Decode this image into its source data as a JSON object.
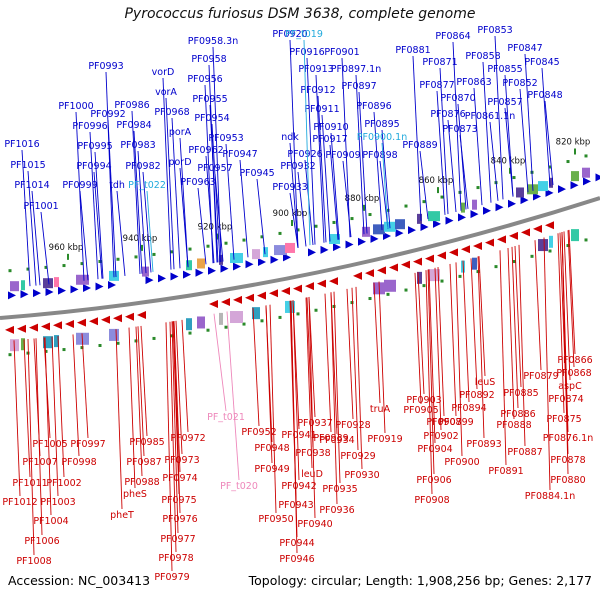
{
  "title": "Pyrococcus furiosus DSM 3638, complete genome",
  "footer": {
    "accession": "Accession: NC_003413",
    "topology": "Topology: circular; Length: 1,908,256 bp; Genes: 2,177"
  },
  "colors": {
    "forward": "#0000cc",
    "reverse": "#cc0000",
    "trna_fwd": "#22aadd",
    "trna_rev": "#ee88bb",
    "backbone": "#888888"
  },
  "kbp_labels": [
    {
      "text": "960 kbp"
    },
    {
      "text": "940 kbp"
    },
    {
      "text": "920 kbp"
    },
    {
      "text": "900 kbp"
    },
    {
      "text": "880 kbp"
    },
    {
      "text": "860 kbp"
    },
    {
      "text": "840 kbp"
    },
    {
      "text": "820 kbp"
    }
  ],
  "forward_genes": [
    {
      "label": "PF1016"
    },
    {
      "label": "PF1015"
    },
    {
      "label": "PF1014"
    },
    {
      "label": "PF1001"
    },
    {
      "label": "PF0999"
    },
    {
      "label": "PF0994"
    },
    {
      "label": "PF0995"
    },
    {
      "label": "PF0996"
    },
    {
      "label": "PF1000"
    },
    {
      "label": "PF0992"
    },
    {
      "label": "PF0993"
    },
    {
      "label": "tdh"
    },
    {
      "label": "PF0982"
    },
    {
      "label": "PF0983"
    },
    {
      "label": "PF0984"
    },
    {
      "label": "PF0986"
    },
    {
      "label": "PF0968"
    },
    {
      "label": "vorA"
    },
    {
      "label": "vorD"
    },
    {
      "label": "porA"
    },
    {
      "label": "porD"
    },
    {
      "label": "PF0963"
    },
    {
      "label": "PF0962"
    },
    {
      "label": "PF0958.3n"
    },
    {
      "label": "PF0958"
    },
    {
      "label": "PF0956"
    },
    {
      "label": "PF0955"
    },
    {
      "label": "PF0954"
    },
    {
      "label": "PF0953"
    },
    {
      "label": "PF0957"
    },
    {
      "label": "PF0947"
    },
    {
      "label": "PF0945"
    },
    {
      "label": "PF0933"
    },
    {
      "label": "ndk"
    },
    {
      "label": "PF0932"
    },
    {
      "label": "PF0926"
    },
    {
      "label": "PF0920"
    },
    {
      "label": "PF0916"
    },
    {
      "label": "PF0913"
    },
    {
      "label": "PF0912"
    },
    {
      "label": "PF0911"
    },
    {
      "label": "PF0910"
    },
    {
      "label": "PF0917"
    },
    {
      "label": "PF0909"
    },
    {
      "label": "PF0901"
    },
    {
      "label": "PF0897.1n"
    },
    {
      "label": "PF0897"
    },
    {
      "label": "PF0896"
    },
    {
      "label": "PF0895"
    },
    {
      "label": "PF0898"
    },
    {
      "label": "PF0889"
    },
    {
      "label": "PF0881"
    },
    {
      "label": "PF0864"
    },
    {
      "label": "PF0871"
    },
    {
      "label": "PF0877"
    },
    {
      "label": "PF0870"
    },
    {
      "label": "PF0876"
    },
    {
      "label": "PF0873"
    },
    {
      "label": "PF0853"
    },
    {
      "label": "PF0858"
    },
    {
      "label": "PF0863"
    },
    {
      "label": "PF0855"
    },
    {
      "label": "PF0847"
    },
    {
      "label": "PF0845"
    },
    {
      "label": "PF0852"
    },
    {
      "label": "PF0857"
    },
    {
      "label": "PF0848"
    },
    {
      "label": "PF0861.1n"
    }
  ],
  "forward_trna": [
    {
      "label": "PF_t022"
    },
    {
      "label": "PF_t019"
    },
    {
      "label": "PF0900.1n"
    }
  ],
  "reverse_genes": [
    {
      "label": "PF1005"
    },
    {
      "label": "PF0997"
    },
    {
      "label": "PF1007"
    },
    {
      "label": "PF0998"
    },
    {
      "label": "PF1011"
    },
    {
      "label": "PF1002"
    },
    {
      "label": "PF1012"
    },
    {
      "label": "PF1003"
    },
    {
      "label": "PF1004"
    },
    {
      "label": "PF1006"
    },
    {
      "label": "PF1008"
    },
    {
      "label": "PF0985"
    },
    {
      "label": "PF0972"
    },
    {
      "label": "PF0987"
    },
    {
      "label": "PF0973"
    },
    {
      "label": "PF0988"
    },
    {
      "label": "PF0974"
    },
    {
      "label": "pheS"
    },
    {
      "label": "PF0975"
    },
    {
      "label": "pheT"
    },
    {
      "label": "PF0976"
    },
    {
      "label": "PF0977"
    },
    {
      "label": "PF0978"
    },
    {
      "label": "PF0979"
    },
    {
      "label": "PF0952"
    },
    {
      "label": "PF0948"
    },
    {
      "label": "PF0941"
    },
    {
      "label": "PF0937"
    },
    {
      "label": "PF0928"
    },
    {
      "label": "PF0939"
    },
    {
      "label": "PF0934"
    },
    {
      "label": "PF0949"
    },
    {
      "label": "PF0938"
    },
    {
      "label": "PF0929"
    },
    {
      "label": "leuD"
    },
    {
      "label": "PF0930"
    },
    {
      "label": "PF0942"
    },
    {
      "label": "PF0935"
    },
    {
      "label": "PF0943"
    },
    {
      "label": "PF0936"
    },
    {
      "label": "PF0950"
    },
    {
      "label": "PF0940"
    },
    {
      "label": "PF0944"
    },
    {
      "label": "PF0946"
    },
    {
      "label": "truA"
    },
    {
      "label": "PF0919"
    },
    {
      "label": "PF0903"
    },
    {
      "label": "PF0905"
    },
    {
      "label": "PF0907"
    },
    {
      "label": "PF0902"
    },
    {
      "label": "PF0904"
    },
    {
      "label": "PF0906"
    },
    {
      "label": "PF0900"
    },
    {
      "label": "PF0908"
    },
    {
      "label": "leuS"
    },
    {
      "label": "PF0892"
    },
    {
      "label": "PF0894"
    },
    {
      "label": "PF0899"
    },
    {
      "label": "PF0893"
    },
    {
      "label": "PF0891"
    },
    {
      "label": "PF0885"
    },
    {
      "label": "PF0886"
    },
    {
      "label": "PF0888"
    },
    {
      "label": "PF0887"
    },
    {
      "label": "PF0879"
    },
    {
      "label": "PF0866"
    },
    {
      "label": "PF0868"
    },
    {
      "label": "aspC"
    },
    {
      "label": "PF0874"
    },
    {
      "label": "PF0875"
    },
    {
      "label": "PF0876.1n"
    },
    {
      "label": "PF0878"
    },
    {
      "label": "PF0880"
    },
    {
      "label": "PF0884.1n"
    }
  ],
  "reverse_trna": [
    {
      "label": "PF_t021"
    },
    {
      "label": "PF_t020"
    }
  ]
}
